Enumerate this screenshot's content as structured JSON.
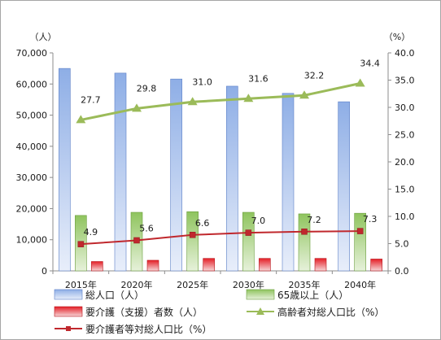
{
  "chart_data": {
    "type": "bar",
    "categories": [
      "2015年",
      "2020年",
      "2025年",
      "2030年",
      "2035年",
      "2040年"
    ],
    "left_axis": {
      "unit": "（人）",
      "ylim": [
        0,
        70000
      ],
      "ticks": [
        "0",
        "10,000",
        "20,000",
        "30,000",
        "40,000",
        "50,000",
        "60,000",
        "70,000"
      ]
    },
    "right_axis": {
      "unit": "（%）",
      "ylim": [
        0,
        40
      ],
      "ticks": [
        "0.0",
        "5.0",
        "10.0",
        "15.0",
        "20.0",
        "25.0",
        "30.0",
        "35.0",
        "40.0"
      ]
    },
    "series": [
      {
        "name": "総人口（人）",
        "kind": "bar",
        "axis": "left",
        "color": "#7ea2e0",
        "values": [
          65000,
          63500,
          61600,
          59300,
          57000,
          54300
        ]
      },
      {
        "name": "65歳以上（人）",
        "kind": "bar",
        "axis": "left",
        "color": "#8dc35f",
        "values": [
          17800,
          18800,
          19000,
          18800,
          18300,
          18500
        ]
      },
      {
        "name": "要介護（支援）者数（人）",
        "kind": "bar",
        "axis": "left",
        "color": "#e8202a",
        "values": [
          3000,
          3400,
          4000,
          4000,
          4000,
          3800
        ]
      },
      {
        "name": "高齢者対総人口比（%）",
        "kind": "line",
        "axis": "right",
        "color": "#9bbb59",
        "marker": "triangle",
        "values": [
          27.7,
          29.8,
          31.0,
          31.6,
          32.2,
          34.4
        ],
        "labels": [
          "27.7",
          "29.8",
          "31.0",
          "31.6",
          "32.2",
          "34.4"
        ]
      },
      {
        "name": "要介護者等対総人口比（%）",
        "kind": "line",
        "axis": "right",
        "color": "#c0282d",
        "marker": "square",
        "values": [
          4.9,
          5.6,
          6.6,
          7.0,
          7.2,
          7.3
        ],
        "labels": [
          "4.9",
          "5.6",
          "6.6",
          "7.0",
          "7.2",
          "7.3"
        ]
      }
    ],
    "legend": "bottom",
    "grid": false
  }
}
